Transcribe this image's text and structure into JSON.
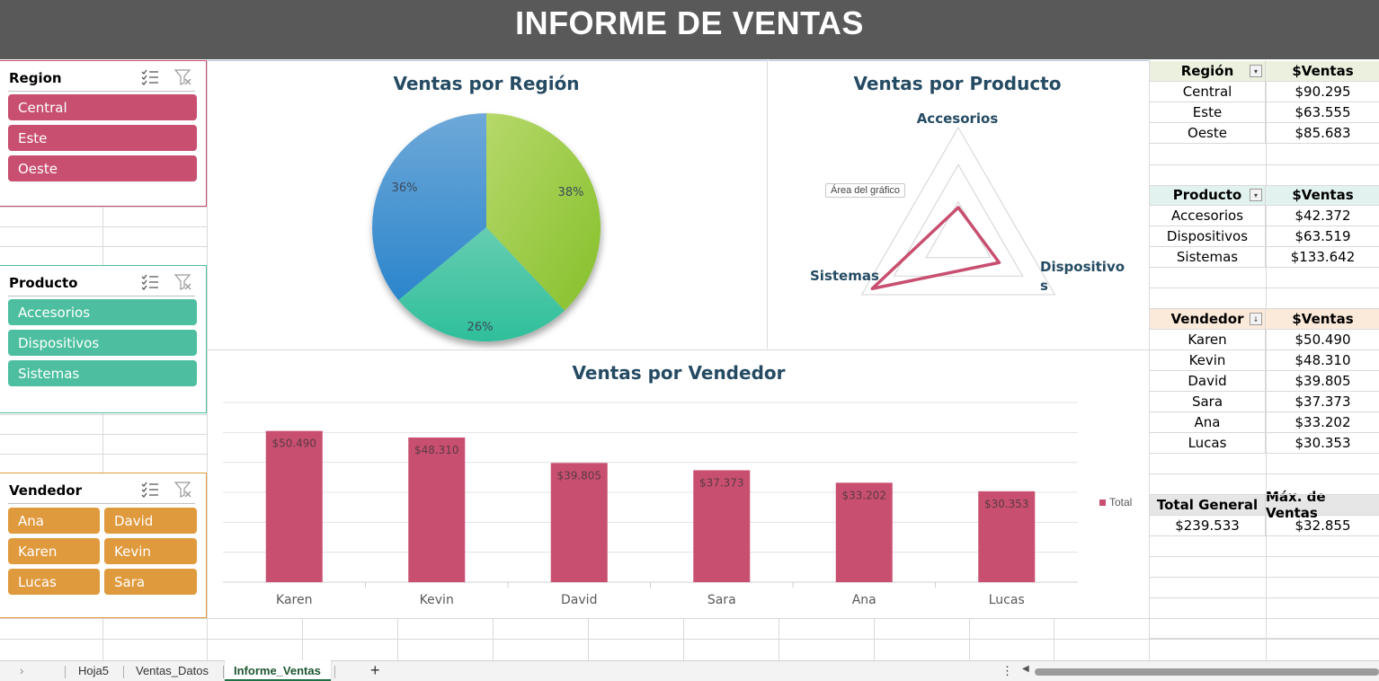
{
  "header": {
    "title": "INFORME DE VENTAS"
  },
  "colors": {
    "region": "#c84f70",
    "producto": "#4dbfa0",
    "vendedor": "#e09a3e",
    "bar": "#c84f70",
    "title": "#254b63"
  },
  "slicers": {
    "region": {
      "title": "Region",
      "items": [
        "Central",
        "Este",
        "Oeste"
      ]
    },
    "producto": {
      "title": "Producto",
      "items": [
        "Accesorios",
        "Dispositivos",
        "Sistemas"
      ]
    },
    "vendedor": {
      "title": "Vendedor",
      "items": [
        "Ana",
        "David",
        "Karen",
        "Kevin",
        "Lucas",
        "Sara"
      ]
    }
  },
  "charts": {
    "region_title": "Ventas por Región",
    "producto_title": "Ventas por Producto",
    "vendedor_title": "Ventas por Vendedor",
    "area_tooltip": "Área del gráfico",
    "legend_total": "Total"
  },
  "chart_data": [
    {
      "type": "pie",
      "title": "Ventas por Región",
      "labels": [
        "38%",
        "26%",
        "36%"
      ],
      "values": [
        38,
        26,
        36
      ],
      "colors": [
        "#9acd32",
        "#3cc4a0",
        "#3d8fd0"
      ]
    },
    {
      "type": "radar",
      "title": "Ventas por Producto",
      "categories": [
        "Accesorios",
        "Dispositivos",
        "Sistemas"
      ],
      "values": [
        42372,
        63519,
        133642
      ],
      "rmax": 150000
    },
    {
      "type": "bar",
      "title": "Ventas por Vendedor",
      "categories": [
        "Karen",
        "Kevin",
        "David",
        "Sara",
        "Ana",
        "Lucas"
      ],
      "series": [
        {
          "name": "Total",
          "values": [
            50490,
            48310,
            39805,
            37373,
            33202,
            30353
          ]
        }
      ],
      "value_labels": [
        "$50.490",
        "$48.310",
        "$39.805",
        "$37.373",
        "$33.202",
        "$30.353"
      ],
      "ylim": [
        0,
        60000
      ]
    }
  ],
  "tables": {
    "region": {
      "header": [
        "Región",
        "$Ventas"
      ],
      "rows": [
        [
          "Central",
          "$90.295"
        ],
        [
          "Este",
          "$63.555"
        ],
        [
          "Oeste",
          "$85.683"
        ]
      ]
    },
    "producto": {
      "header": [
        "Producto",
        "$Ventas"
      ],
      "rows": [
        [
          "Accesorios",
          "$42.372"
        ],
        [
          "Dispositivos",
          "$63.519"
        ],
        [
          "Sistemas",
          "$133.642"
        ]
      ]
    },
    "vendedor": {
      "header": [
        "Vendedor",
        "$Ventas"
      ],
      "rows": [
        [
          "Karen",
          "$50.490"
        ],
        [
          "Kevin",
          "$48.310"
        ],
        [
          "David",
          "$39.805"
        ],
        [
          "Sara",
          "$37.373"
        ],
        [
          "Ana",
          "$33.202"
        ],
        [
          "Lucas",
          "$30.353"
        ]
      ]
    },
    "summary": {
      "header": [
        "Total General",
        "Máx. de Ventas"
      ],
      "values": [
        "$239.533",
        "$32.855"
      ]
    }
  },
  "sheets": {
    "tabs": [
      "Hoja5",
      "Ventas_Datos",
      "Informe_Ventas"
    ],
    "active": "Informe_Ventas",
    "add": "+",
    "more": "⋮"
  }
}
